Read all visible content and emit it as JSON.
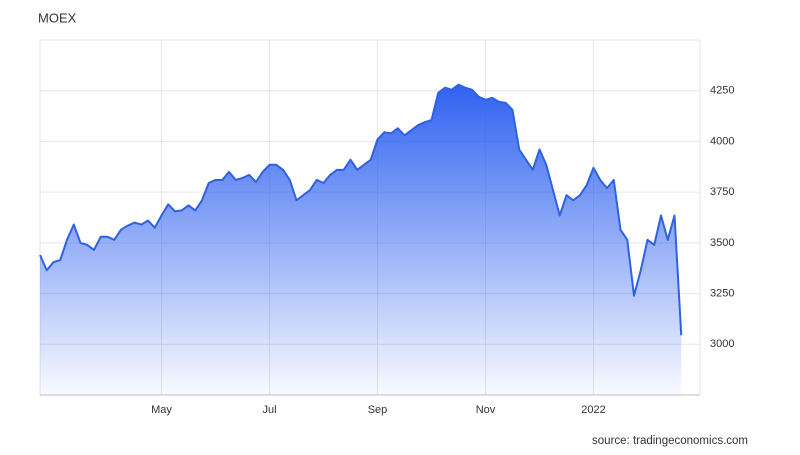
{
  "chart_data": {
    "type": "area",
    "title": "MOEX",
    "source": "source: tradingeconomics.com",
    "categories": [
      null,
      null,
      null,
      null,
      null,
      null,
      null,
      null,
      null,
      null,
      null,
      null,
      null,
      null,
      null,
      null,
      null,
      null,
      "May",
      null,
      null,
      null,
      null,
      null,
      null,
      null,
      null,
      null,
      null,
      null,
      null,
      null,
      null,
      null,
      "Jul",
      null,
      null,
      null,
      null,
      null,
      null,
      null,
      null,
      null,
      null,
      null,
      null,
      null,
      null,
      null,
      "Sep",
      null,
      null,
      null,
      null,
      null,
      null,
      null,
      null,
      null,
      null,
      null,
      null,
      null,
      null,
      null,
      "Nov",
      null,
      null,
      null,
      null,
      null,
      null,
      null,
      null,
      null,
      null,
      null,
      null,
      null,
      null,
      null,
      "2022",
      null,
      null,
      null,
      null,
      null,
      null,
      null,
      null,
      null,
      null,
      null,
      null,
      null
    ],
    "values": [
      3440,
      3365,
      3405,
      3415,
      3515,
      3590,
      3500,
      3490,
      3465,
      3530,
      3530,
      3515,
      3565,
      3585,
      3600,
      3590,
      3610,
      3575,
      3635,
      3690,
      3655,
      3660,
      3685,
      3660,
      3710,
      3795,
      3810,
      3810,
      3850,
      3810,
      3820,
      3835,
      3800,
      3850,
      3885,
      3885,
      3860,
      3810,
      3710,
      3735,
      3760,
      3810,
      3795,
      3835,
      3860,
      3860,
      3910,
      3860,
      3885,
      3910,
      4010,
      4045,
      4040,
      4065,
      4030,
      4055,
      4080,
      4095,
      4105,
      4240,
      4265,
      4255,
      4280,
      4265,
      4255,
      4220,
      4205,
      4215,
      4195,
      4190,
      4155,
      3960,
      3910,
      3860,
      3960,
      3885,
      3760,
      3635,
      3735,
      3710,
      3735,
      3785,
      3870,
      3810,
      3770,
      3810,
      3565,
      3515,
      3240,
      3365,
      3515,
      3490,
      3635,
      3515,
      3635,
      3045
    ],
    "color": "#2f62e0",
    "ylim": [
      2750,
      4500
    ],
    "yticks": [
      3000,
      3250,
      3500,
      3750,
      4000,
      4250
    ],
    "grid": true
  }
}
